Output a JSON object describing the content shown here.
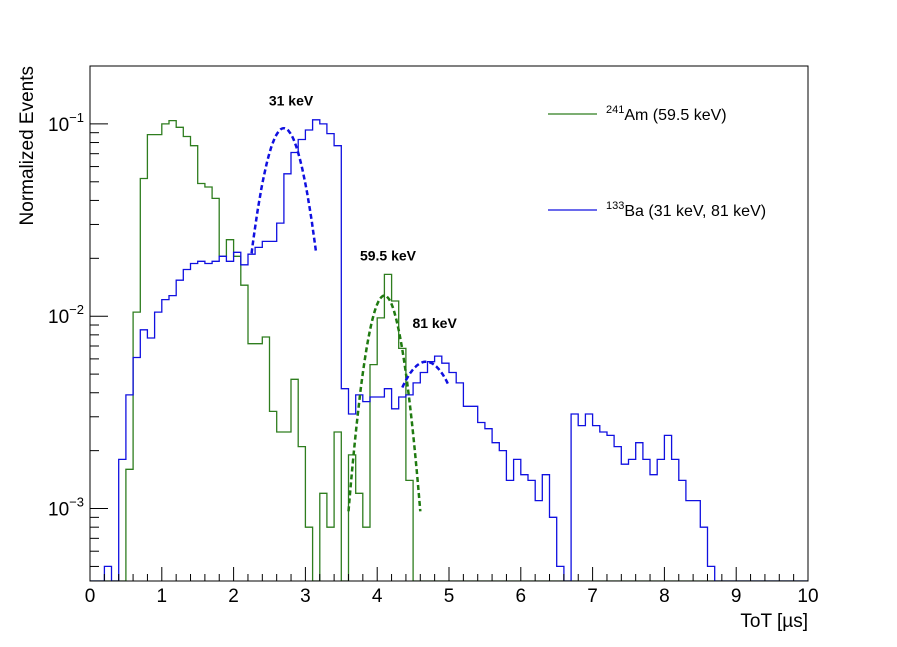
{
  "chart_data": {
    "type": "line",
    "title": "",
    "xlabel": "ToT [µs]",
    "ylabel": "Normalized Events",
    "xlim": [
      0,
      10
    ],
    "ylim": [
      0.00042,
      0.2
    ],
    "yscale": "log",
    "grid": false,
    "legend_position": "top-right",
    "x_ticks": [
      "0",
      "1",
      "2",
      "3",
      "4",
      "5",
      "6",
      "7",
      "8",
      "9",
      "10"
    ],
    "y_ticks": [
      {
        "value": 0.1,
        "base": "10",
        "exp": "−1"
      },
      {
        "value": 0.01,
        "base": "10",
        "exp": "−2"
      },
      {
        "value": 0.001,
        "base": "10",
        "exp": "−3"
      }
    ],
    "series": [
      {
        "name": "Am-241",
        "legend_sup": "241",
        "legend_main": "Am (59.5 keV)",
        "color": "#2e7d1e",
        "style": "step",
        "bin_width": 0.1,
        "x_start": 0.0,
        "values": [
          0.0004,
          0.0004,
          0.0004,
          0.0004,
          0.0004,
          0.0016,
          0.0105,
          0.052,
          0.088,
          0.088,
          0.1,
          0.104,
          0.096,
          0.086,
          0.077,
          0.049,
          0.047,
          0.041,
          0.0205,
          0.025,
          0.0205,
          0.0145,
          0.0072,
          0.0072,
          0.0078,
          0.0032,
          0.0025,
          0.0025,
          0.0047,
          0.0047,
          0.0021,
          0.0021,
          0.0021,
          0.0008,
          0.0008,
          0.0008,
          0.0008,
          0.0004,
          0.0004,
          0.0004,
          0.0004,
          0.0004,
          0.0004,
          0.0004,
          0.0004,
          0.0004,
          0.0004,
          0.0004,
          0.0004,
          0.0004,
          0.0004,
          0.0004,
          0.0004,
          0.0004,
          0.0004,
          0.0004,
          0.0004,
          0.0004,
          0.0004,
          0.0004,
          0.0004,
          0.0004,
          0.0004,
          0.0004,
          0.0004,
          0.0004,
          0.0004,
          0.0004,
          0.0004,
          0.0004,
          0.0004,
          0.0004,
          0.0004,
          0.0004,
          0.0004,
          0.0004,
          0.0004,
          0.0004,
          0.0004,
          0.0004,
          0.0004,
          0.0004,
          0.0004,
          0.0004,
          0.0004,
          0.0004,
          0.0004,
          0.0004,
          0.0004,
          0.0004,
          0.0004,
          0.0004,
          0.0004,
          0.0004,
          0.0004,
          0.0004,
          0.0004,
          0.0004,
          0.0004,
          0.0004
        ],
        "overrides": [
          {
            "x": 2.9,
            "values": [
              0.0021,
              0.0008,
              0.0004,
              0.0012,
              0.0008,
              0.0025,
              0.0004,
              0.0019,
              0.0012,
              0.0008
            ]
          },
          {
            "x": 3.9,
            "values": [
              0.0056,
              0.0098,
              0.0165,
              0.012,
              0.0068,
              0.0014,
              0.0004
            ]
          }
        ]
      },
      {
        "name": "Ba-133",
        "legend_sup": "133",
        "legend_main": "Ba (31 keV, 81 keV)",
        "color": "#1010e0",
        "style": "step",
        "bin_width": 0.1,
        "x_start": 0.0,
        "values": [
          0.0004,
          0.0004,
          0.0005,
          0.0004,
          0.0018,
          0.0039,
          0.0061,
          0.0085,
          0.0077,
          0.0105,
          0.0122,
          0.0128,
          0.0154,
          0.0175,
          0.0188,
          0.0193,
          0.0188,
          0.0193,
          0.0205,
          0.0193,
          0.0215,
          0.0185,
          0.021,
          0.0228,
          0.0245,
          0.0245,
          0.0305,
          0.055,
          0.071,
          0.083,
          0.093,
          0.105,
          0.1,
          0.089,
          0.077,
          0.042,
          0.02,
          0.02,
          0.016,
          0.0138,
          0.0115,
          0.0098,
          0.0092,
          0.0086,
          0.0081,
          0.0077,
          0.0052,
          0.0045,
          0.0036,
          0.0049,
          0.0045,
          0.0047,
          0.0052,
          0.0058,
          0.0062,
          0.0061,
          0.0055,
          0.0045,
          0.0039,
          0.0031,
          0.0034,
          0.0041,
          0.0038,
          0.0035,
          0.0027,
          0.0031,
          0.0031,
          0.0031,
          0.0027,
          0.0031,
          0.0027,
          0.0025,
          0.0024,
          0.0021,
          0.0017,
          0.0018,
          0.0022,
          0.0018,
          0.0015,
          0.0018,
          0.0024,
          0.0018,
          0.0014,
          0.0011,
          0.0011,
          0.0008,
          0.0005,
          0.0004,
          0.0004,
          0.0004,
          0.0004,
          0.0004,
          0.0004,
          0.0004,
          0.0004,
          0.0004,
          0.0004,
          0.0004,
          0.0004,
          0.0004
        ],
        "overrides": [
          {
            "x": 3.5,
            "values": [
              0.0042,
              0.0031,
              0.0039,
              0.0036,
              0.0038,
              0.0038,
              0.0042,
              0.0033,
              0.0038,
              0.0039,
              0.0045,
              0.0051,
              0.0058,
              0.0062,
              0.0057,
              0.0051,
              0.0045,
              0.0034,
              0.0034,
              0.0028
            ]
          },
          {
            "x": 5.5,
            "values": [
              0.0026,
              0.0022,
              0.002,
              0.0014,
              0.0018,
              0.0015,
              0.0014,
              0.0011,
              0.0015,
              0.0009,
              0.0005,
              0.0004
            ]
          }
        ]
      }
    ],
    "fits": [
      {
        "name": "fit-31keV",
        "color": "#1010e0",
        "amp": 0.095,
        "mean": 2.7,
        "sigma": 0.26,
        "x_range": [
          2.25,
          3.15
        ]
      },
      {
        "name": "fit-59keV",
        "color": "#1f7a10",
        "amp": 0.0128,
        "mean": 4.1,
        "sigma": 0.22,
        "x_range": [
          3.6,
          4.6
        ]
      },
      {
        "name": "fit-81keV",
        "color": "#1010e0",
        "amp": 0.0058,
        "mean": 4.68,
        "sigma": 0.42,
        "x_range": [
          4.35,
          5.0
        ]
      }
    ],
    "annotations": [
      {
        "text": "31 keV",
        "x": 2.8,
        "y": 0.125
      },
      {
        "text": "59.5 keV",
        "x": 4.15,
        "y": 0.0195
      },
      {
        "text": "81 keV",
        "x": 4.8,
        "y": 0.0087
      }
    ]
  }
}
